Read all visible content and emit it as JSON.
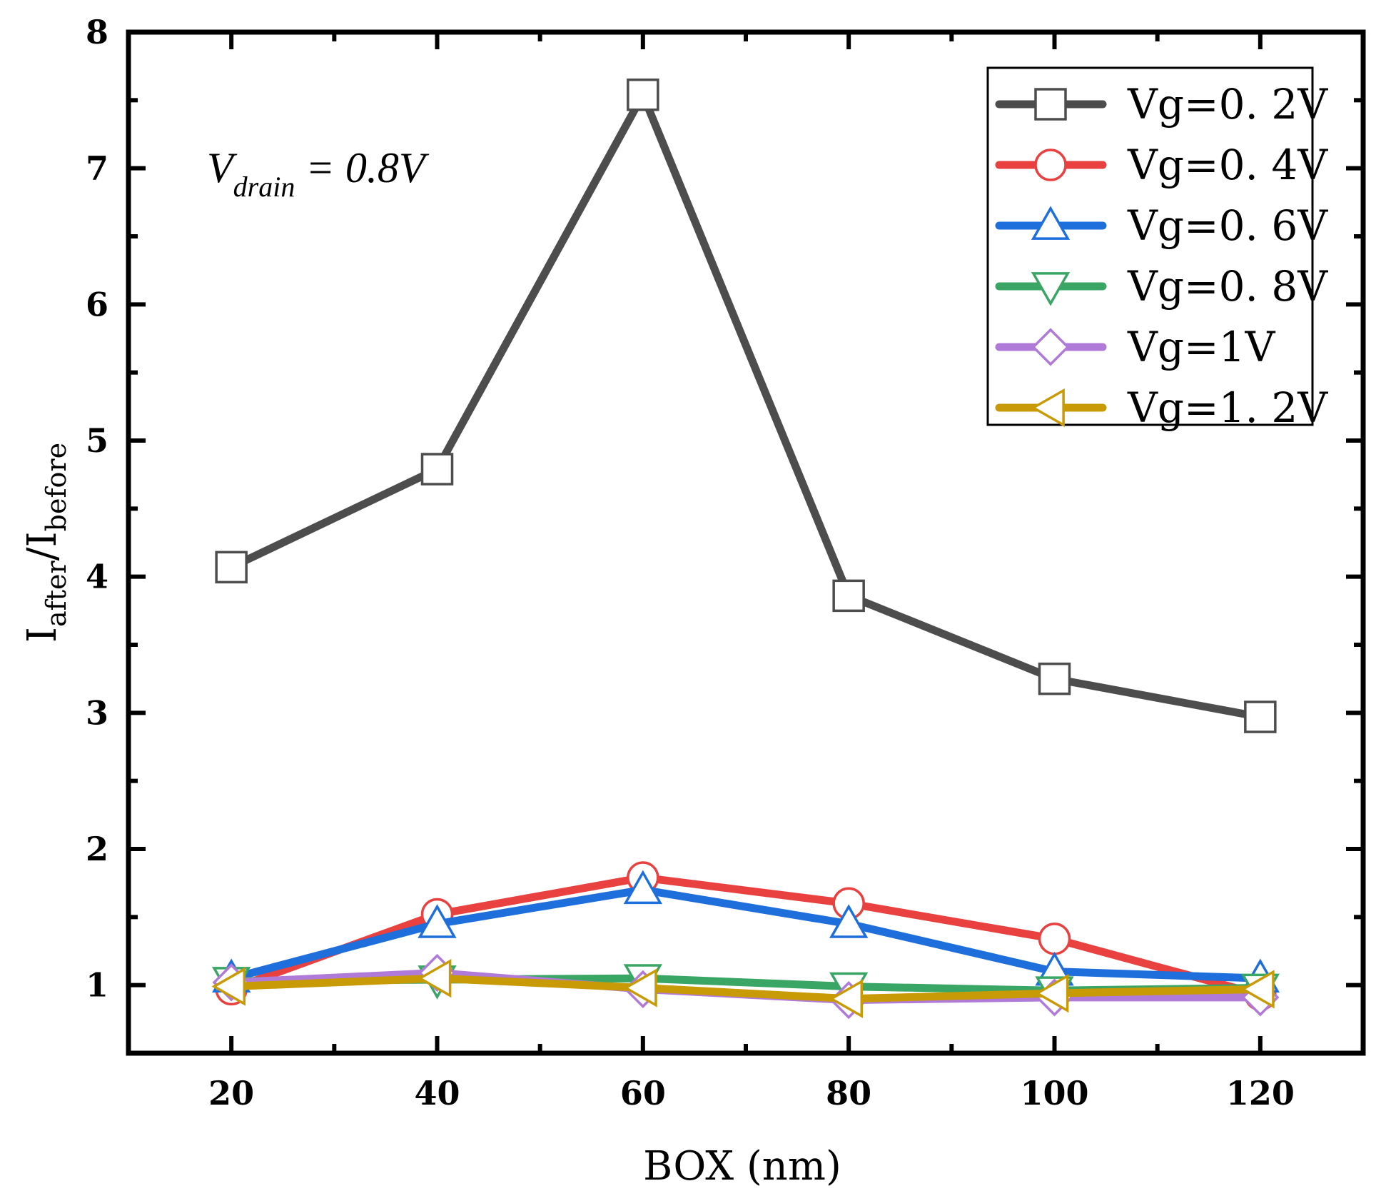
{
  "chart_data": {
    "type": "line",
    "xlabel": "BOX (nm)",
    "ylabel": {
      "main": "I",
      "sub1": "after",
      "slash": "/",
      "main2": "I",
      "sub2": "before"
    },
    "xlim": [
      10,
      130
    ],
    "ylim": [
      0.5,
      8
    ],
    "x_ticks": [
      20,
      40,
      60,
      80,
      100,
      120
    ],
    "y_ticks": [
      1,
      2,
      3,
      4,
      5,
      6,
      7,
      8
    ],
    "x": [
      20,
      40,
      60,
      80,
      100,
      120
    ],
    "annotation": {
      "main": "V",
      "sub": "drain",
      "rest": " = 0.8V"
    },
    "legend_position": "top-right",
    "grid": false,
    "series": [
      {
        "name": "Vg=0. 2V",
        "color": "#4d4d4d",
        "marker": "square",
        "values": [
          4.07,
          4.79,
          7.54,
          3.86,
          3.25,
          2.97
        ]
      },
      {
        "name": "Vg=0. 4V",
        "color": "#e94040",
        "marker": "circle",
        "values": [
          0.97,
          1.52,
          1.79,
          1.6,
          1.34,
          0.93
        ]
      },
      {
        "name": "Vg=0. 6V",
        "color": "#1e6fdc",
        "marker": "triangle-up",
        "values": [
          1.05,
          1.45,
          1.7,
          1.45,
          1.1,
          1.05
        ]
      },
      {
        "name": "Vg=0. 8V",
        "color": "#3aa665",
        "marker": "triangle-down",
        "values": [
          1.03,
          1.04,
          1.05,
          0.99,
          0.96,
          0.98
        ]
      },
      {
        "name": "Vg=1V",
        "color": "#b07ad8",
        "marker": "diamond",
        "values": [
          1.02,
          1.09,
          0.97,
          0.89,
          0.91,
          0.91
        ]
      },
      {
        "name": "Vg=1. 2V",
        "color": "#c89a06",
        "marker": "triangle-left",
        "values": [
          0.99,
          1.05,
          0.98,
          0.9,
          0.94,
          0.97
        ]
      }
    ]
  }
}
